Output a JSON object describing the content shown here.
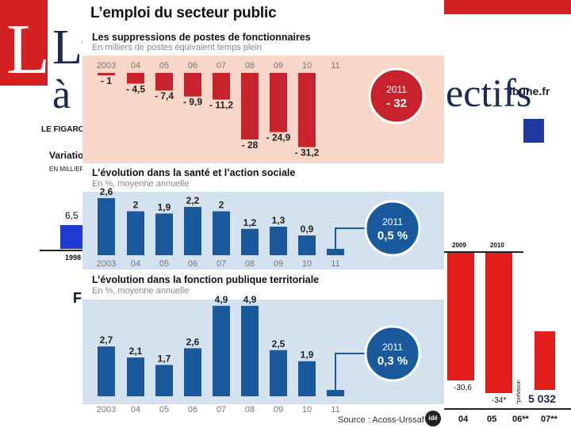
{
  "figure": {
    "title": "L’emploi du secteur public",
    "source": "Source : Acoss-Urssaf",
    "logo": "idé",
    "colors": {
      "red": "#c8232c",
      "blue": "#1a5a9c",
      "panel_pink": "#f8d7c8",
      "panel_blue": "#d4e2ef"
    }
  },
  "background": {
    "left_letter": "L",
    "headline_1": "L’",
    "headline_2": "à",
    "headline_3": "ectifs",
    "paper": "LE FIGARO",
    "site": "ibune.fr",
    "variation_label": "Variatio",
    "units_label": "EN MILLIERS",
    "left_value": "6,5",
    "left_year": "1998",
    "fi_label": "Fi",
    "year_2009": "2009",
    "year_2010": "2010",
    "right_val_1": "-30,6",
    "right_val_2": "-34*",
    "right_val_3": "5 032",
    "right_years": [
      "04",
      "05",
      "06**",
      "07**"
    ],
    "prevision": "*prévision"
  },
  "chart_data": [
    {
      "type": "bar",
      "title": "Les suppressions de postes de fonctionnaires",
      "subtitle": "En milliers de postes équivalent temps plein",
      "categories": [
        "2003",
        "04",
        "05",
        "06",
        "07",
        "08",
        "09",
        "10",
        "11"
      ],
      "values": [
        -1,
        -4.5,
        -7.4,
        -9.9,
        -11.2,
        -28,
        -24.9,
        -31.2,
        null
      ],
      "value_labels": [
        "- 1",
        "- 4,5",
        "- 7,4",
        "- 9,9",
        "- 11,2",
        "- 28",
        "- 24,9",
        "- 31,2",
        ""
      ],
      "callout": {
        "year": "2011",
        "value": "- 32"
      },
      "color": "#c8232c"
    },
    {
      "type": "bar",
      "title": "L’évolution dans la santé et l’action sociale",
      "subtitle": "En %, moyenne annuelle",
      "categories": [
        "2003",
        "04",
        "05",
        "06",
        "07",
        "08",
        "09",
        "10",
        "11"
      ],
      "values": [
        2.6,
        2,
        1.9,
        2.2,
        2,
        1.2,
        1.3,
        0.9,
        null
      ],
      "value_labels": [
        "2,6",
        "2",
        "1,9",
        "2,2",
        "2",
        "1,2",
        "1,3",
        "0,9",
        ""
      ],
      "callout": {
        "year": "2011",
        "value": "0,5 %"
      },
      "color": "#1a5a9c"
    },
    {
      "type": "bar",
      "title": "L’évolution dans la fonction publique territoriale",
      "subtitle": "En %, moyenne annuelle",
      "categories": [
        "2003",
        "04",
        "05",
        "06",
        "07",
        "08",
        "09",
        "10",
        "11"
      ],
      "values": [
        2.7,
        2.1,
        1.7,
        2.6,
        4.9,
        4.9,
        2.5,
        1.9,
        null
      ],
      "value_labels": [
        "2,7",
        "2,1",
        "1,7",
        "2,6",
        "4,9",
        "4,9",
        "2,5",
        "1,9",
        ""
      ],
      "callout": {
        "year": "2011",
        "value": "0,3 %"
      },
      "color": "#1a5a9c"
    }
  ]
}
